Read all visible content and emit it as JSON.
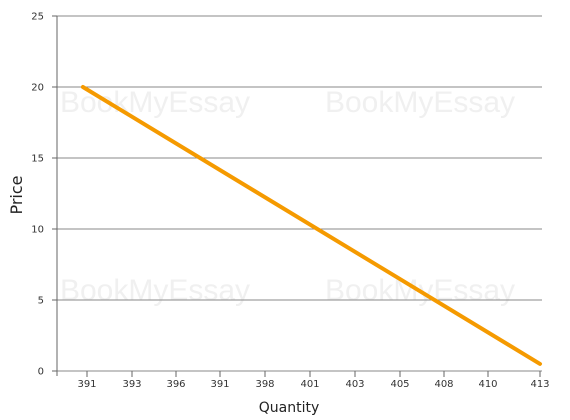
{
  "chart_data": {
    "type": "line",
    "title": "",
    "xlabel": "Quantity",
    "ylabel": "Price",
    "x_tick_labels": [
      "391",
      "393",
      "396",
      "391",
      "398",
      "401",
      "403",
      "405",
      "408",
      "410",
      "413"
    ],
    "y_ticks": [
      0,
      5,
      10,
      15,
      20,
      25
    ],
    "ylim": [
      0,
      25
    ],
    "grid": "horizontal",
    "series": [
      {
        "color": "#f59a00",
        "points": [
          {
            "x": 390.8,
            "y": 20.0
          },
          {
            "x": 413.0,
            "y": 0.5
          }
        ]
      }
    ]
  },
  "watermarks": [
    "BookMyEssay",
    "BookMyEssay",
    "BookMyEssay",
    "BookMyEssay"
  ]
}
